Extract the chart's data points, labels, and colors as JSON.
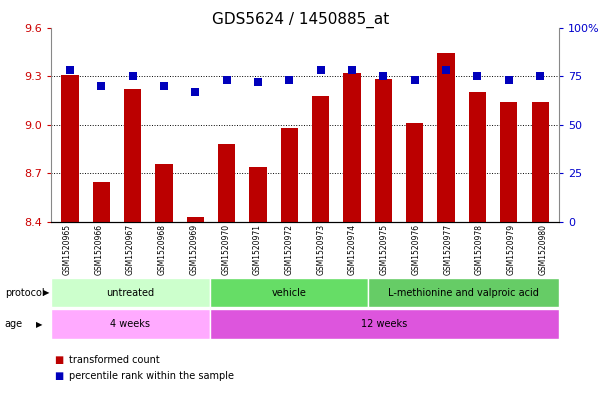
{
  "title": "GDS5624 / 1450885_at",
  "samples": [
    "GSM1520965",
    "GSM1520966",
    "GSM1520967",
    "GSM1520968",
    "GSM1520969",
    "GSM1520970",
    "GSM1520971",
    "GSM1520972",
    "GSM1520973",
    "GSM1520974",
    "GSM1520975",
    "GSM1520976",
    "GSM1520977",
    "GSM1520978",
    "GSM1520979",
    "GSM1520980"
  ],
  "red_values": [
    9.31,
    8.65,
    9.22,
    8.76,
    8.43,
    8.88,
    8.74,
    8.98,
    9.18,
    9.32,
    9.28,
    9.01,
    9.44,
    9.2,
    9.14,
    9.14
  ],
  "blue_values": [
    78,
    70,
    75,
    70,
    67,
    73,
    72,
    73,
    78,
    78,
    75,
    73,
    78,
    75,
    73,
    75
  ],
  "ylim_left": [
    8.4,
    9.6
  ],
  "ylim_right": [
    0,
    100
  ],
  "yticks_left": [
    8.4,
    8.7,
    9.0,
    9.3,
    9.6
  ],
  "yticks_right": [
    0,
    25,
    50,
    75,
    100
  ],
  "ytick_labels_right": [
    "0",
    "25",
    "50",
    "75",
    "100%"
  ],
  "hlines": [
    8.7,
    9.0,
    9.3
  ],
  "bar_color": "#bb0000",
  "dot_color": "#0000bb",
  "protocol_groups": [
    {
      "label": "untreated",
      "start": 0,
      "end": 4,
      "color": "#ccffcc"
    },
    {
      "label": "vehicle",
      "start": 5,
      "end": 9,
      "color": "#66dd66"
    },
    {
      "label": "L-methionine and valproic acid",
      "start": 10,
      "end": 15,
      "color": "#66cc66"
    }
  ],
  "age_groups": [
    {
      "label": "4 weeks",
      "start": 0,
      "end": 4,
      "color": "#ffaaff"
    },
    {
      "label": "12 weeks",
      "start": 5,
      "end": 15,
      "color": "#dd55dd"
    }
  ],
  "legend_items": [
    {
      "label": "transformed count",
      "color": "#bb0000"
    },
    {
      "label": "percentile rank within the sample",
      "color": "#0000bb"
    }
  ],
  "bar_width": 0.55,
  "dot_size": 30,
  "tick_label_color_left": "#cc0000",
  "tick_label_color_right": "#0000cc",
  "tick_fontsize": 8,
  "bar_bottom": 8.4,
  "xtick_gray": "#cccccc"
}
